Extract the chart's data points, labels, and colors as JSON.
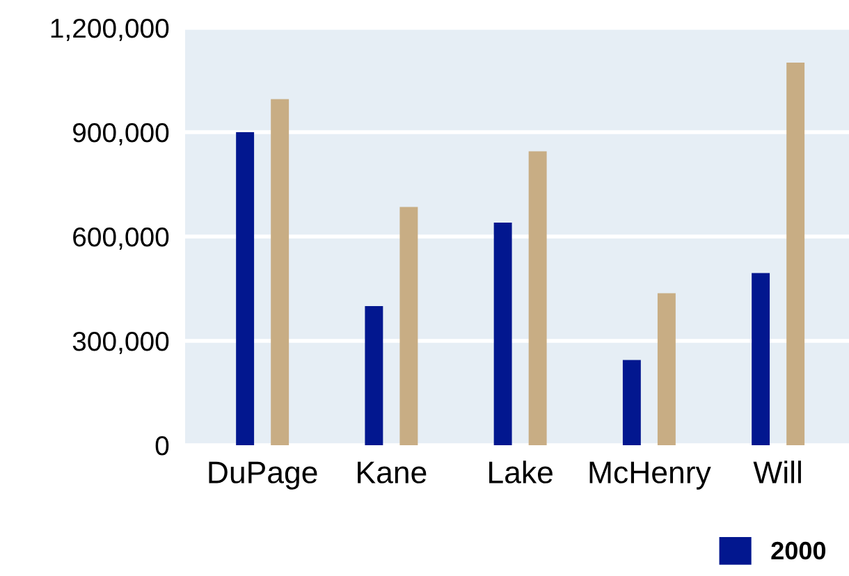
{
  "chart_data": {
    "type": "bar",
    "categories": [
      "DuPage",
      "Kane",
      "Lake",
      "McHenry",
      "Will"
    ],
    "series": [
      {
        "name": "2000",
        "color": "#02178f",
        "values": [
          900000,
          400000,
          640000,
          245000,
          495000
        ]
      },
      {
        "color": "#c8ad84",
        "values": [
          995000,
          685000,
          845000,
          437000,
          1100000
        ]
      }
    ],
    "ylim": [
      0,
      1200000
    ],
    "yticks": [
      {
        "value": 0,
        "label": "0"
      },
      {
        "value": 300000,
        "label": "300,000"
      },
      {
        "value": 600000,
        "label": "600,000"
      },
      {
        "value": 900000,
        "label": "900,000"
      },
      {
        "value": 1200000,
        "label": "1,200,000"
      }
    ],
    "grid": "y",
    "legend": "bottom right"
  }
}
